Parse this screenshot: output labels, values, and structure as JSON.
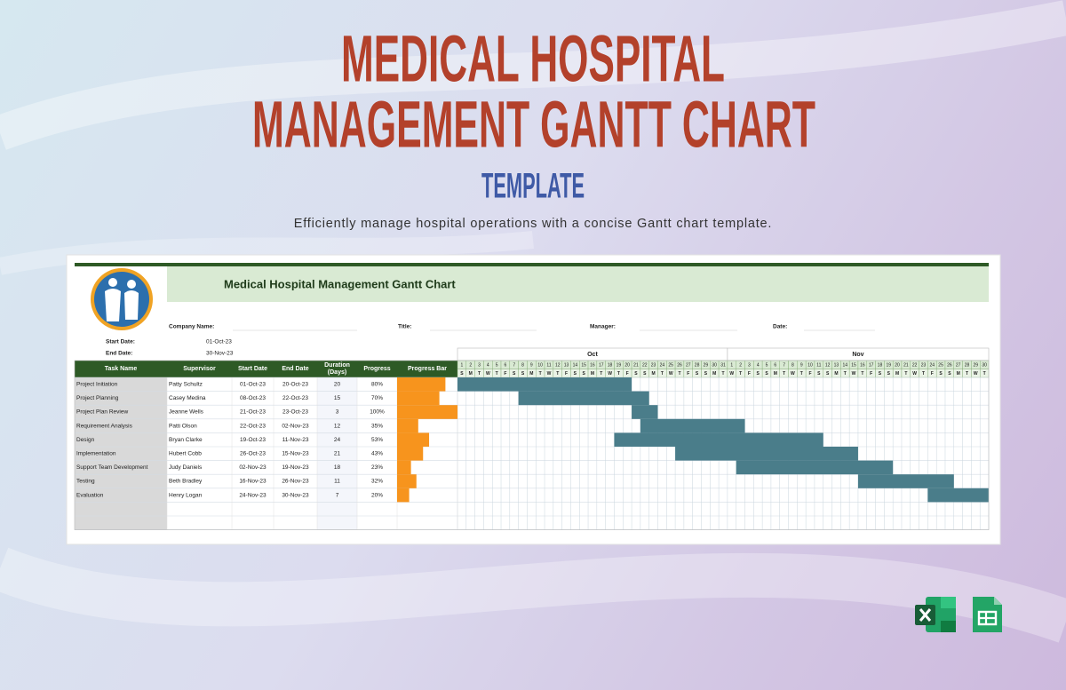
{
  "header": {
    "title_line1": "MEDICAL HOSPITAL",
    "title_line2": "MANAGEMENT GANTT CHART",
    "title_line3": "TEMPLATE",
    "subtitle": "Efficiently manage hospital operations with a concise Gantt chart template."
  },
  "sheet": {
    "title": "Medical Hospital Management Gantt Chart",
    "company_name_label": "Company Name:",
    "title_label": "Title:",
    "manager_label": "Manager:",
    "date_label": "Date:",
    "start_date_label": "Start Date:",
    "start_date": "01-Oct-23",
    "end_date_label": "End Date:",
    "end_date": "30-Nov-23",
    "columns": [
      "Task Name",
      "Supervisor",
      "Start Date",
      "End Date",
      "Duration (Days)",
      "Progress",
      "Progress Bar"
    ],
    "timeline": {
      "months": [
        {
          "name": "Oct",
          "days": [
            1,
            2,
            3,
            4,
            5,
            6,
            7,
            8,
            9,
            10,
            11,
            12,
            13,
            14,
            15,
            16,
            17,
            18,
            19,
            20,
            21,
            22,
            23,
            24,
            25,
            26,
            27,
            28,
            29,
            30,
            31
          ],
          "weekdays": [
            "S",
            "M",
            "T",
            "W",
            "T",
            "F",
            "S",
            "S",
            "M",
            "T",
            "W",
            "T",
            "F",
            "S",
            "S",
            "M",
            "T",
            "W",
            "T",
            "F",
            "S",
            "S",
            "M",
            "T",
            "W",
            "T",
            "F",
            "S",
            "S",
            "M",
            "T"
          ]
        },
        {
          "name": "Nov",
          "days": [
            1,
            2,
            3,
            4,
            5,
            6,
            7,
            8,
            9,
            10,
            11,
            12,
            13,
            14,
            15,
            16,
            17,
            18,
            19,
            20,
            21,
            22,
            23,
            24,
            25,
            26,
            27,
            28,
            29,
            30
          ],
          "weekdays": [
            "W",
            "T",
            "F",
            "S",
            "S",
            "M",
            "T",
            "W",
            "T",
            "F",
            "S",
            "S",
            "M",
            "T",
            "W",
            "T",
            "F",
            "S",
            "S",
            "M",
            "T",
            "W",
            "T",
            "F",
            "S",
            "S",
            "M",
            "T",
            "W",
            "T"
          ]
        }
      ]
    },
    "tasks": [
      {
        "name": "Project Initiation",
        "supervisor": "Patty Schultz",
        "start": "01-Oct-23",
        "end": "20-Oct-23",
        "duration": 20,
        "progress": {
          "value": 80,
          "label": "80%"
        }
      },
      {
        "name": "Project Planning",
        "supervisor": "Casey Medina",
        "start": "08-Oct-23",
        "end": "22-Oct-23",
        "duration": 15,
        "progress": {
          "value": 70,
          "label": "70%"
        }
      },
      {
        "name": "Project Plan Review",
        "supervisor": "Jeanne Wells",
        "start": "21-Oct-23",
        "end": "23-Oct-23",
        "duration": 3,
        "progress": {
          "value": 100,
          "label": "100%"
        }
      },
      {
        "name": "Requirement Analysis",
        "supervisor": "Patti Olson",
        "start": "22-Oct-23",
        "end": "02-Nov-23",
        "duration": 12,
        "progress": {
          "value": 35,
          "label": "35%"
        }
      },
      {
        "name": "Design",
        "supervisor": "Bryan Clarke",
        "start": "19-Oct-23",
        "end": "11-Nov-23",
        "duration": 24,
        "progress": {
          "value": 53,
          "label": "53%"
        }
      },
      {
        "name": "Implementation",
        "supervisor": "Hubert Cobb",
        "start": "26-Oct-23",
        "end": "15-Nov-23",
        "duration": 21,
        "progress": {
          "value": 43,
          "label": "43%"
        }
      },
      {
        "name": "Support Team Development",
        "supervisor": "Judy Daniels",
        "start": "02-Nov-23",
        "end": "19-Nov-23",
        "duration": 18,
        "progress": {
          "value": 23,
          "label": "23%"
        }
      },
      {
        "name": "Testing",
        "supervisor": "Beth Bradley",
        "start": "16-Nov-23",
        "end": "26-Nov-23",
        "duration": 11,
        "progress": {
          "value": 32,
          "label": "32%"
        }
      },
      {
        "name": "Evaluation",
        "supervisor": "Henry Logan",
        "start": "24-Nov-23",
        "end": "30-Nov-23",
        "duration": 7,
        "progress": {
          "value": 20,
          "label": "20%"
        }
      }
    ]
  }
}
